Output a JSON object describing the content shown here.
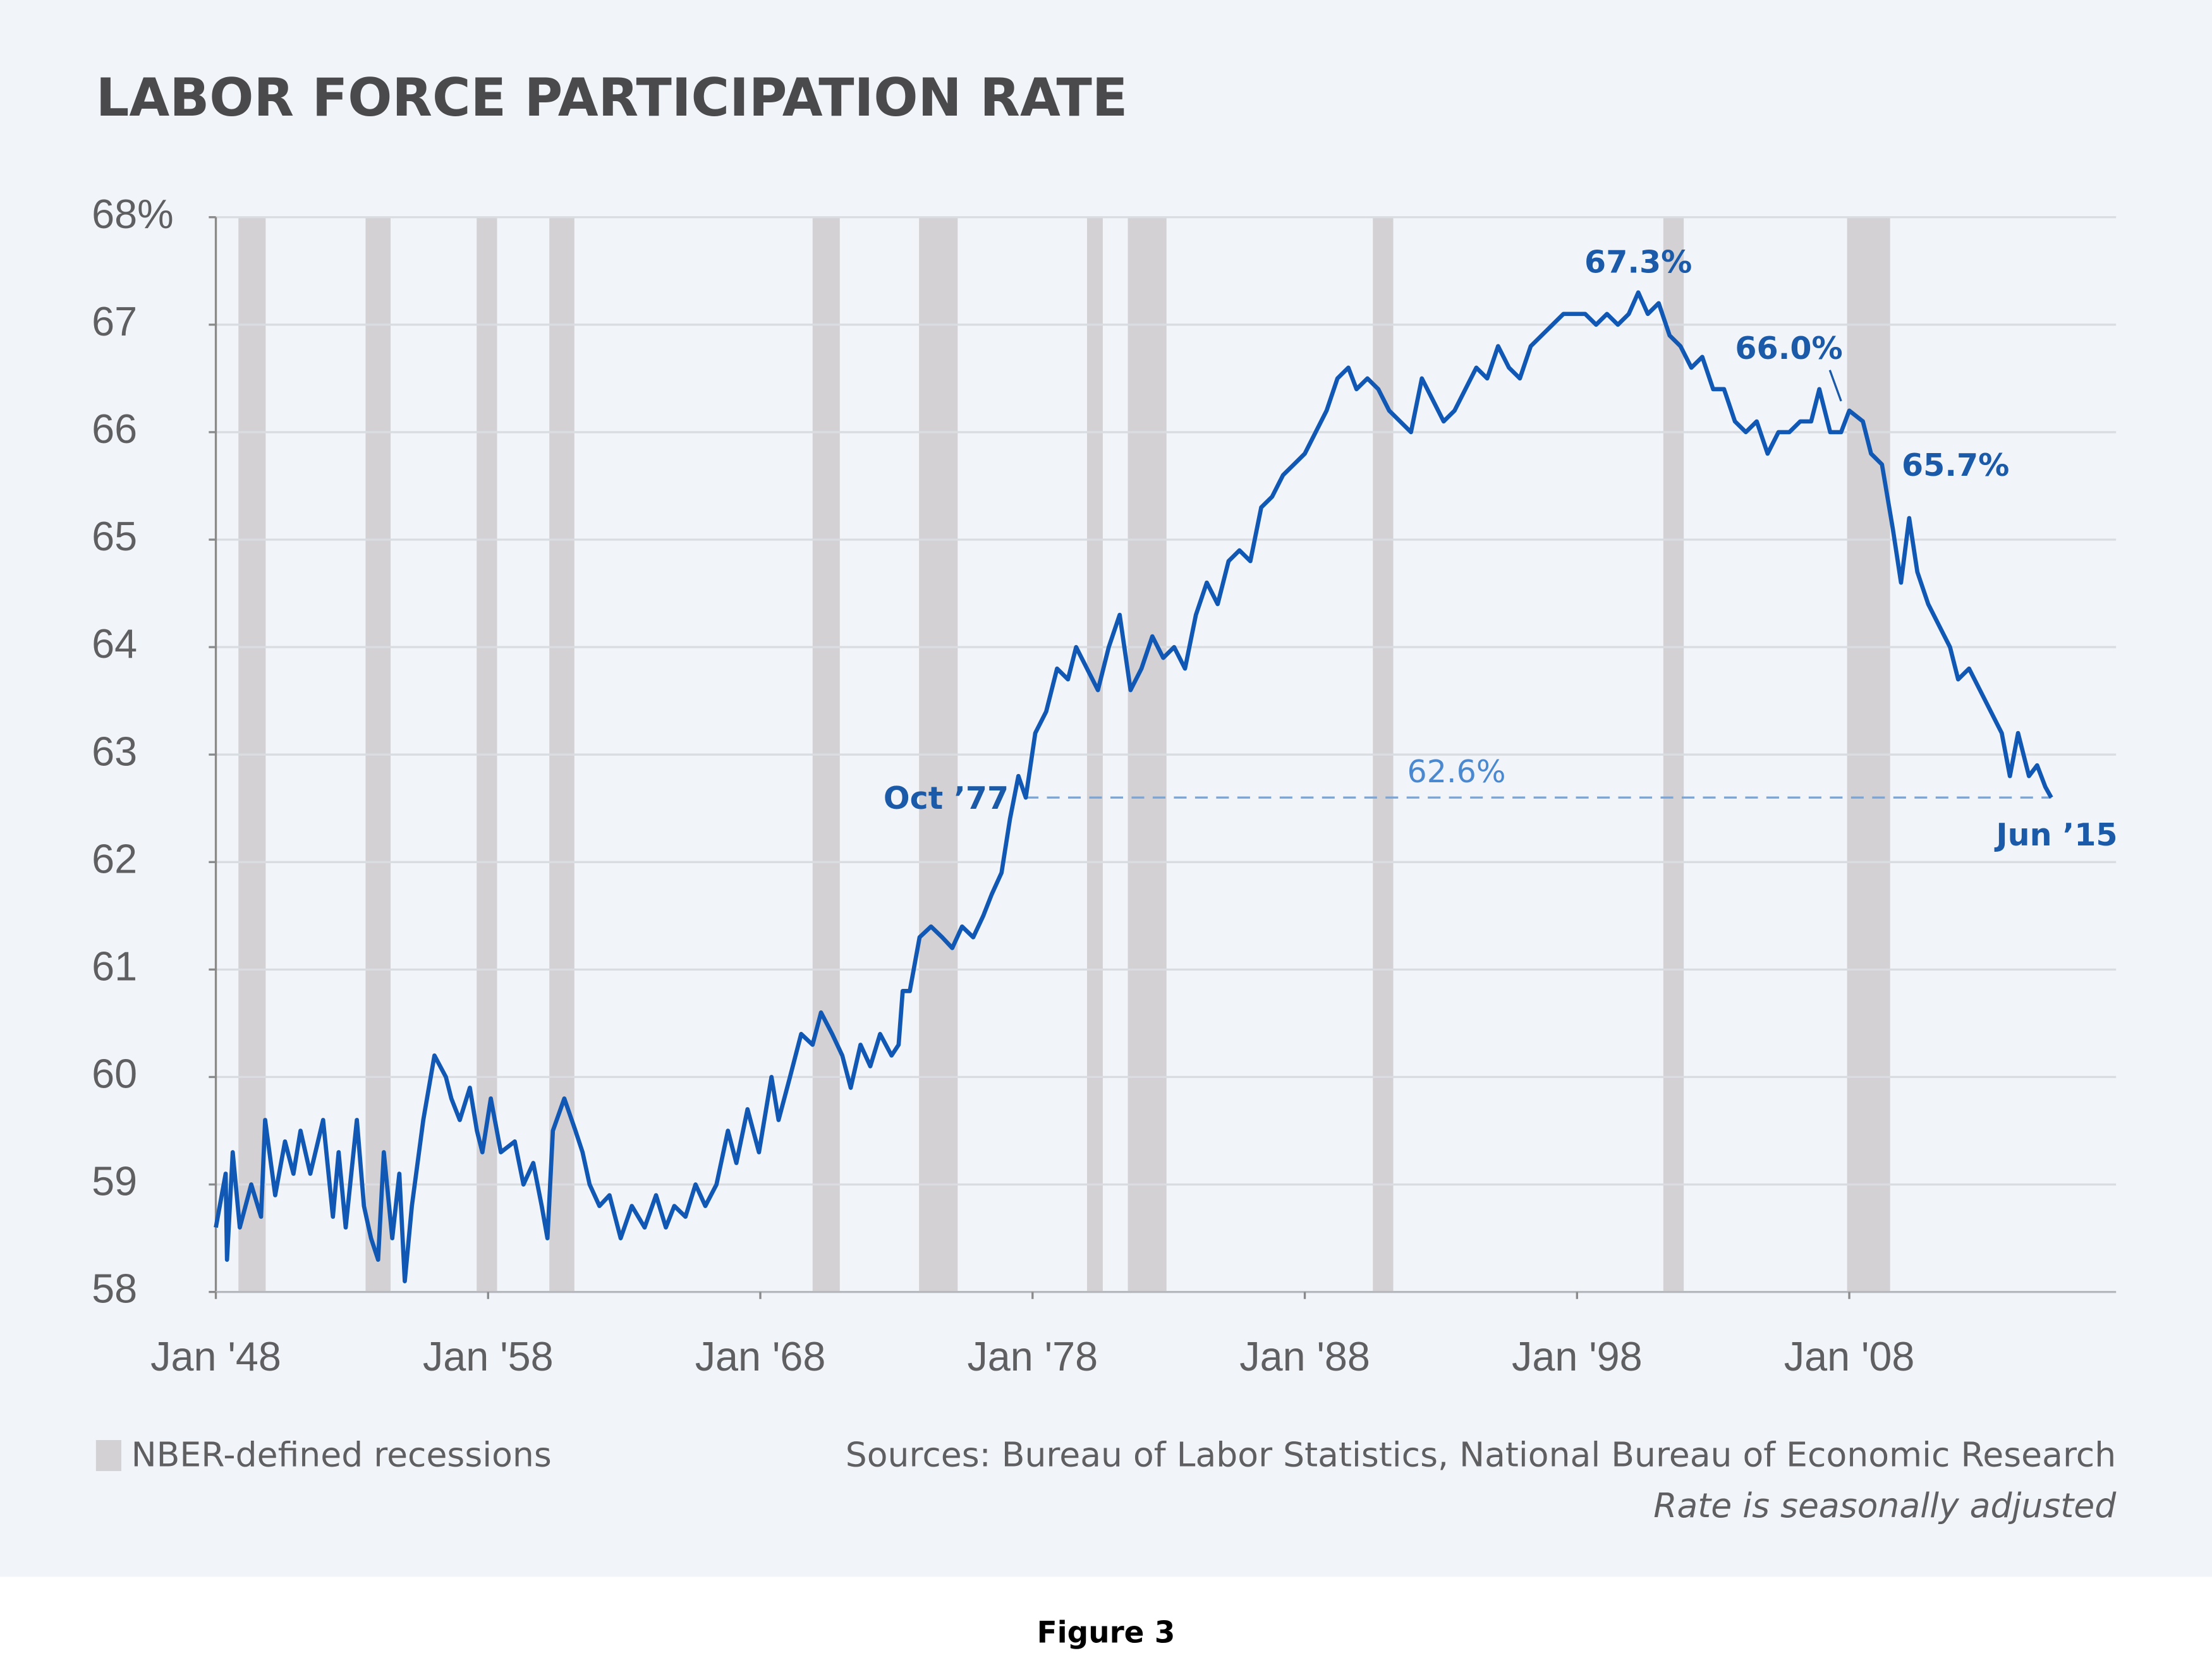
{
  "chart_data": {
    "type": "line",
    "title": "LABOR FORCE PARTICIPATION RATE",
    "color": "#1058b4",
    "x": [
      1948.0,
      1948.36,
      1948.41,
      1948.62,
      1948.88,
      1949.3,
      1949.66,
      1949.81,
      1950.18,
      1950.54,
      1950.85,
      1951.11,
      1951.47,
      1951.94,
      1952.3,
      1952.51,
      1952.77,
      1953.18,
      1953.44,
      1953.7,
      1953.96,
      1954.17,
      1954.48,
      1954.74,
      1954.94,
      1955.2,
      1955.62,
      1956.03,
      1956.45,
      1956.65,
      1956.96,
      1957.33,
      1957.59,
      1957.79,
      1958.1,
      1958.47,
      1958.98,
      1959.3,
      1959.66,
      1959.97,
      1960.18,
      1960.38,
      1960.8,
      1961.21,
      1961.47,
      1961.73,
      1962.09,
      1962.46,
      1962.87,
      1963.28,
      1963.75,
      1964.17,
      1964.53,
      1964.84,
      1965.25,
      1965.62,
      1965.98,
      1966.39,
      1966.81,
      1967.12,
      1967.53,
      1967.95,
      1968.41,
      1968.67,
      1969.09,
      1969.5,
      1969.92,
      1970.23,
      1970.64,
      1971.01,
      1971.32,
      1971.68,
      1972.04,
      1972.4,
      1972.82,
      1973.08,
      1973.23,
      1973.49,
      1973.85,
      1974.27,
      1974.68,
      1975.05,
      1975.41,
      1975.82,
      1976.19,
      1976.5,
      1976.86,
      1977.17,
      1977.48,
      1977.75,
      1978.1,
      1978.5,
      1978.9,
      1979.3,
      1979.6,
      1980.0,
      1980.4,
      1980.8,
      1981.2,
      1981.6,
      1982.0,
      1982.4,
      1982.8,
      1983.2,
      1983.6,
      1984.0,
      1984.4,
      1984.8,
      1985.2,
      1985.6,
      1986.0,
      1986.4,
      1986.8,
      1987.2,
      1987.6,
      1988.0,
      1988.4,
      1988.8,
      1989.2,
      1989.6,
      1989.9,
      1990.3,
      1990.7,
      1991.1,
      1991.5,
      1991.9,
      1992.3,
      1992.7,
      1993.1,
      1993.5,
      1993.9,
      1994.3,
      1994.7,
      1995.1,
      1995.5,
      1995.9,
      1996.3,
      1996.7,
      1997.1,
      1997.5,
      1997.9,
      1998.3,
      1998.7,
      1999.1,
      1999.5,
      1999.9,
      2000.25,
      2000.6,
      2001.0,
      2001.4,
      2001.8,
      2002.2,
      2002.6,
      2003.0,
      2003.4,
      2003.8,
      2004.2,
      2004.6,
      2005.0,
      2005.4,
      2005.8,
      2006.2,
      2006.6,
      2006.9,
      2007.3,
      2007.7,
      2008.0,
      2008.5,
      2008.8,
      2009.2,
      2009.6,
      2009.9,
      2010.2,
      2010.5,
      2010.9,
      2011.3,
      2011.7,
      2012.0,
      2012.4,
      2012.8,
      2013.2,
      2013.6,
      2013.9,
      2014.2,
      2014.6,
      2014.9,
      2015.2,
      2015.42
    ],
    "values": [
      58.6,
      59.1,
      58.3,
      59.3,
      58.6,
      59.0,
      58.7,
      59.6,
      58.9,
      59.4,
      59.1,
      59.5,
      59.1,
      59.6,
      58.7,
      59.3,
      58.6,
      59.6,
      58.8,
      58.5,
      58.3,
      59.3,
      58.5,
      59.1,
      58.1,
      58.8,
      59.6,
      60.2,
      60.0,
      59.8,
      59.6,
      59.9,
      59.5,
      59.3,
      59.8,
      59.3,
      59.4,
      59.0,
      59.2,
      58.8,
      58.5,
      59.5,
      59.8,
      59.5,
      59.3,
      59.0,
      58.8,
      58.9,
      58.5,
      58.8,
      58.6,
      58.9,
      58.6,
      58.8,
      58.7,
      59.0,
      58.8,
      59.0,
      59.5,
      59.2,
      59.7,
      59.3,
      60.0,
      59.6,
      60.0,
      60.4,
      60.3,
      60.6,
      60.4,
      60.2,
      59.9,
      60.3,
      60.1,
      60.4,
      60.2,
      60.3,
      60.8,
      60.8,
      61.3,
      61.4,
      61.3,
      61.2,
      61.4,
      61.3,
      61.5,
      61.7,
      61.9,
      62.4,
      62.8,
      62.6,
      63.2,
      63.4,
      63.8,
      63.7,
      64.0,
      63.8,
      63.6,
      64.0,
      64.3,
      63.6,
      63.8,
      64.1,
      63.9,
      64.0,
      63.8,
      64.3,
      64.6,
      64.4,
      64.8,
      64.9,
      64.8,
      65.3,
      65.4,
      65.6,
      65.7,
      65.8,
      66.0,
      66.2,
      66.5,
      66.6,
      66.4,
      66.5,
      66.4,
      66.2,
      66.1,
      66.0,
      66.5,
      66.3,
      66.1,
      66.2,
      66.4,
      66.6,
      66.5,
      66.8,
      66.6,
      66.5,
      66.8,
      66.9,
      67.0,
      67.1,
      67.1,
      67.1,
      67.0,
      67.1,
      67.0,
      67.1,
      67.3,
      67.1,
      67.2,
      66.9,
      66.8,
      66.6,
      66.7,
      66.4,
      66.4,
      66.1,
      66.0,
      66.1,
      65.8,
      66.0,
      66.0,
      66.1,
      66.1,
      66.4,
      66.0,
      66.0,
      66.2,
      66.1,
      65.8,
      65.7,
      65.1,
      64.6,
      65.2,
      64.7,
      64.4,
      64.2,
      64.0,
      63.7,
      63.8,
      63.6,
      63.4,
      63.2,
      62.8,
      63.2,
      62.8,
      62.9,
      62.7,
      62.6
    ],
    "xlim": [
      1948,
      2017.8
    ],
    "ylim": [
      58,
      68
    ],
    "xticks": [
      {
        "value": 1948,
        "label": "Jan '48"
      },
      {
        "value": 1958,
        "label": "Jan '58"
      },
      {
        "value": 1968,
        "label": "Jan '68"
      },
      {
        "value": 1978,
        "label": "Jan '78"
      },
      {
        "value": 1988,
        "label": "Jan '88"
      },
      {
        "value": 1998,
        "label": "Jan '98"
      },
      {
        "value": 2008,
        "label": "Jan '08"
      }
    ],
    "yticks": [
      58,
      59,
      60,
      61,
      62,
      63,
      64,
      65,
      66,
      67,
      {
        "value": 68,
        "label": "68%"
      }
    ],
    "grid": true,
    "recessions": {
      "label": "NBER-defined recessions",
      "color": "#d3d1d4",
      "periods": [
        [
          1948.83,
          1949.83
        ],
        [
          1953.5,
          1954.42
        ],
        [
          1957.58,
          1958.33
        ],
        [
          1960.25,
          1961.17
        ],
        [
          1969.92,
          1970.92
        ],
        [
          1973.83,
          1975.25
        ],
        [
          1980.0,
          1980.58
        ],
        [
          1981.5,
          1982.92
        ],
        [
          1990.5,
          1991.25
        ],
        [
          2001.17,
          2001.92
        ],
        [
          2007.92,
          2009.5
        ]
      ]
    },
    "reference_line": {
      "label": "62.6%",
      "y": 62.6,
      "x": [
        1977.75,
        2015.42
      ]
    },
    "annotations": [
      {
        "text": "67.3%",
        "x": 2000.25,
        "y": 67.3
      },
      {
        "text": "66.0%",
        "x": 2007.7,
        "y": 66.0
      },
      {
        "text": "65.7%",
        "x": 2009.2,
        "y": 65.7
      },
      {
        "text": "Oct ’77",
        "x": 1977.75,
        "y": 62.6
      },
      {
        "text": "Jun ’15",
        "x": 2015.42,
        "y": 62.6
      }
    ],
    "sources": "Sources: Bureau of Labor Statistics, National Bureau of Economic Research",
    "note": "Rate is seasonally adjusted"
  },
  "caption": "Figure 3"
}
